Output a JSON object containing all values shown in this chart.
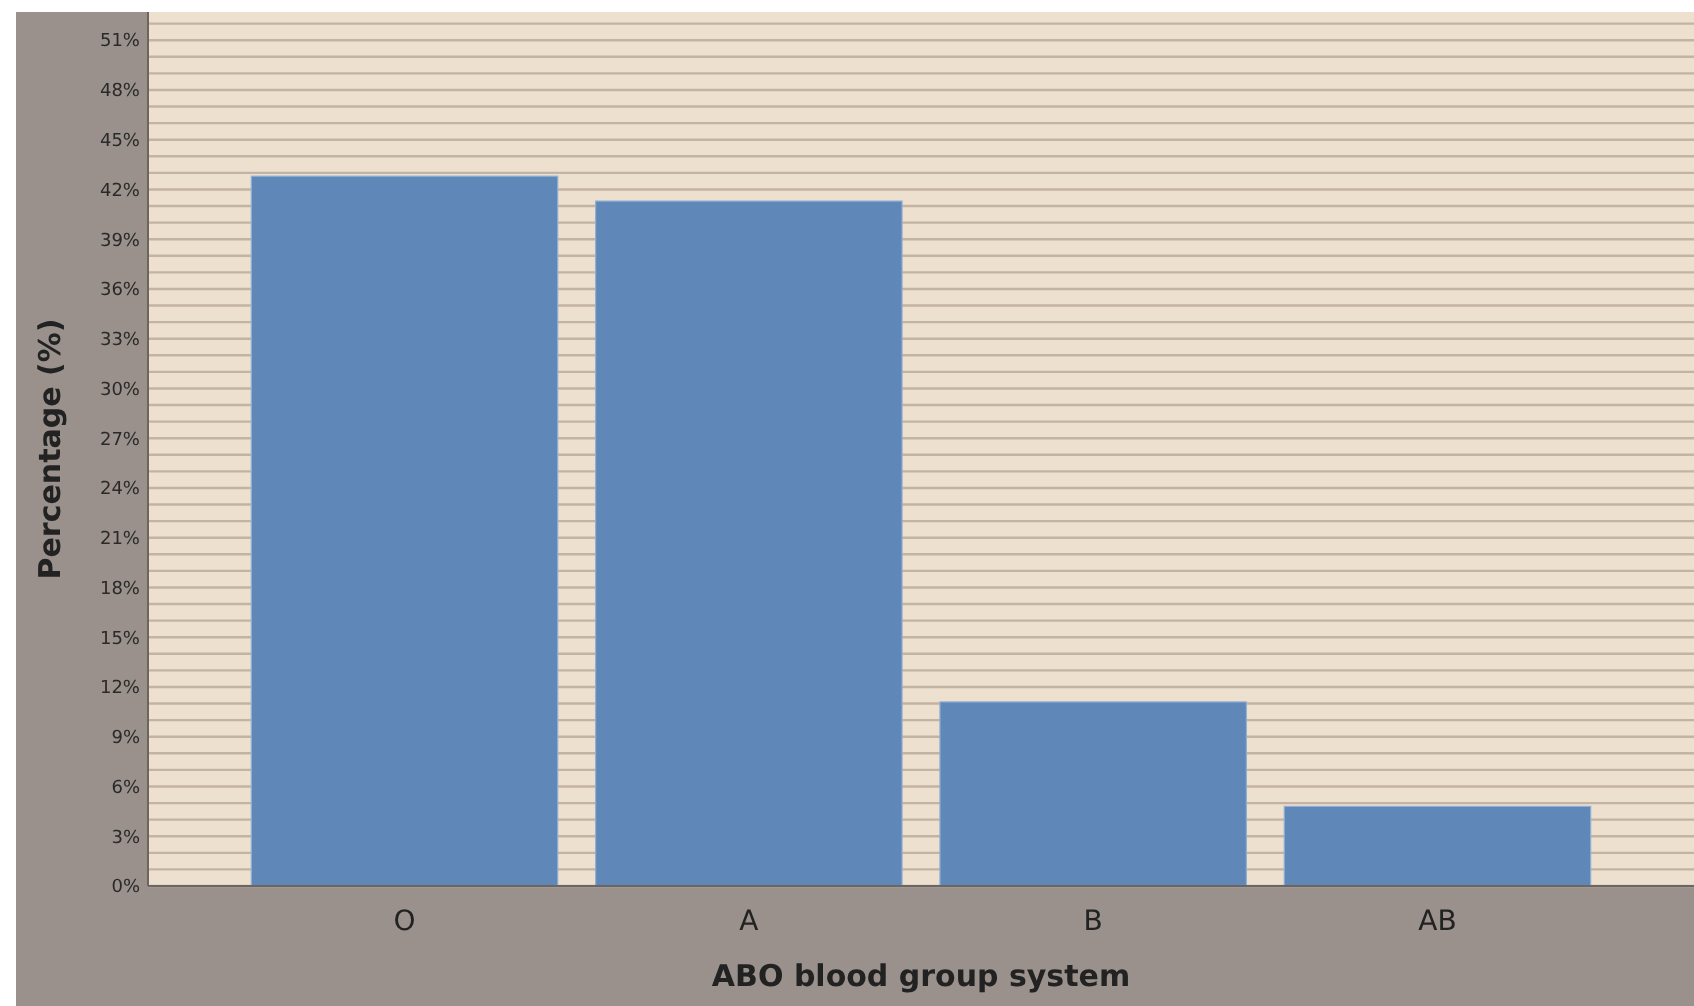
{
  "chart_data": {
    "type": "bar",
    "xlabel": "ABO blood group system",
    "ylabel": "Percentage (%)",
    "categories": [
      "O",
      "A",
      "B",
      "AB"
    ],
    "values": [
      42.8,
      41.3,
      11.1,
      4.8
    ],
    "color": "#5f87b8",
    "ylim": [
      0,
      52.7
    ],
    "yticks": [
      {
        "value": 0,
        "label": "0%"
      },
      {
        "value": 1,
        "label": null
      },
      {
        "value": 2,
        "label": null
      },
      {
        "value": 3,
        "label": "3%"
      },
      {
        "value": 4,
        "label": null
      },
      {
        "value": 5,
        "label": null
      },
      {
        "value": 6,
        "label": "6%"
      },
      {
        "value": 7,
        "label": null
      },
      {
        "value": 8,
        "label": null
      },
      {
        "value": 9,
        "label": "9%"
      },
      {
        "value": 10,
        "label": null
      },
      {
        "value": 11,
        "label": null
      },
      {
        "value": 12,
        "label": "12%"
      },
      {
        "value": 13,
        "label": null
      },
      {
        "value": 14,
        "label": null
      },
      {
        "value": 15,
        "label": "15%"
      },
      {
        "value": 16,
        "label": null
      },
      {
        "value": 17,
        "label": null
      },
      {
        "value": 18,
        "label": "18%"
      },
      {
        "value": 19,
        "label": null
      },
      {
        "value": 20,
        "label": null
      },
      {
        "value": 21,
        "label": "21%"
      },
      {
        "value": 22,
        "label": null
      },
      {
        "value": 23,
        "label": null
      },
      {
        "value": 24,
        "label": "24%"
      },
      {
        "value": 25,
        "label": null
      },
      {
        "value": 26,
        "label": null
      },
      {
        "value": 27,
        "label": "27%"
      },
      {
        "value": 28,
        "label": null
      },
      {
        "value": 29,
        "label": null
      },
      {
        "value": 30,
        "label": "30%"
      },
      {
        "value": 31,
        "label": null
      },
      {
        "value": 32,
        "label": null
      },
      {
        "value": 33,
        "label": "33%"
      },
      {
        "value": 34,
        "label": null
      },
      {
        "value": 35,
        "label": null
      },
      {
        "value": 36,
        "label": "36%"
      },
      {
        "value": 37,
        "label": null
      },
      {
        "value": 38,
        "label": null
      },
      {
        "value": 39,
        "label": "39%"
      },
      {
        "value": 40,
        "label": null
      },
      {
        "value": 41,
        "label": null
      },
      {
        "value": 42,
        "label": "42%"
      },
      {
        "value": 43,
        "label": null
      },
      {
        "value": 44,
        "label": null
      },
      {
        "value": 45,
        "label": "45%"
      },
      {
        "value": 46,
        "label": null
      },
      {
        "value": 47,
        "label": null
      },
      {
        "value": 48,
        "label": "48%"
      },
      {
        "value": 49,
        "label": null
      },
      {
        "value": 50,
        "label": null
      },
      {
        "value": 51,
        "label": "51%"
      },
      {
        "value": 52,
        "label": null
      }
    ],
    "grid": "y"
  }
}
